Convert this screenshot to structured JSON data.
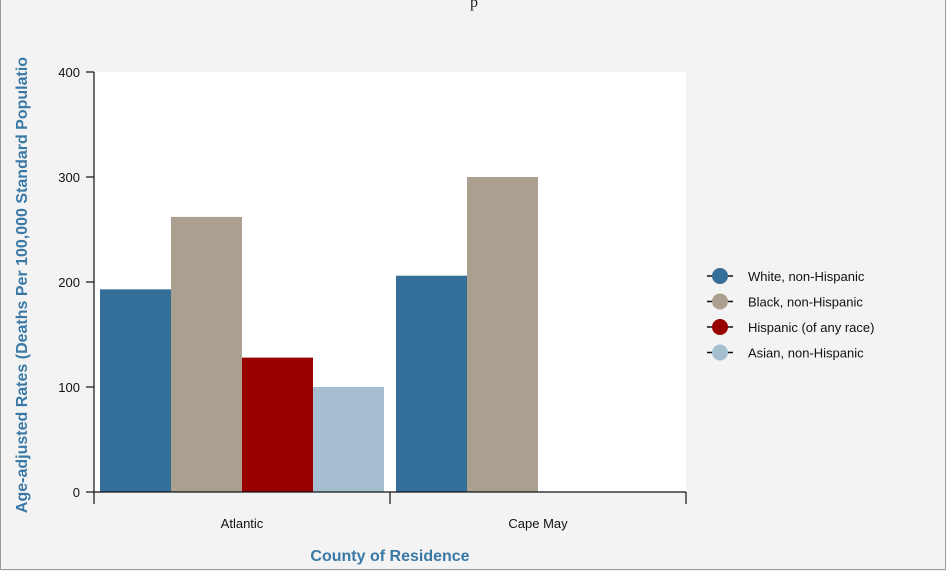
{
  "page": {
    "top_text": "p"
  },
  "chart_data": {
    "type": "bar",
    "categories": [
      "Atlantic",
      "Cape May"
    ],
    "series": [
      {
        "name": "White, non-Hispanic",
        "color": "#336f99",
        "values": [
          193,
          206
        ]
      },
      {
        "name": "Black, non-Hispanic",
        "color": "#ab9f8f",
        "values": [
          262,
          300
        ]
      },
      {
        "name": "Hispanic (of any race)",
        "color": "#990000",
        "values": [
          128,
          null
        ]
      },
      {
        "name": "Asian, non-Hispanic",
        "color": "#a5bfd1",
        "values": [
          100,
          null
        ]
      }
    ],
    "xlabel": "County of Residence",
    "ylabel": "Age-adjusted Rates (Deaths Per 100,000 Standard Populatio",
    "ylim": [
      0,
      400
    ],
    "yticks": [
      0,
      100,
      200,
      300,
      400
    ],
    "grid": false,
    "legend_position": "right"
  }
}
